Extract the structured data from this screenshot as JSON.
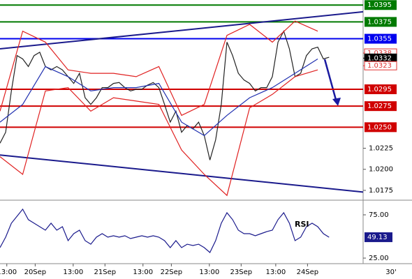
{
  "chart_data": [
    {
      "type": "line",
      "xlim": [
        0,
        64
      ],
      "ylim": [
        1.0165,
        1.0401
      ],
      "yticks": [
        1.0225,
        {
          "value": 1.02,
          "label": "1.0200"
        },
        1.0175
      ],
      "levels": [
        {
          "value": 1.0395,
          "color": "#007a00"
        },
        {
          "value": 1.0375,
          "color": "#007a00"
        },
        {
          "value": 1.0355,
          "color": "#0000ee"
        },
        {
          "value": 1.0295,
          "color": "#d00000"
        },
        {
          "value": 1.0275,
          "color": "#d00000"
        },
        {
          "value": {
            "value": 1.025,
            "label": "1.0250"
          },
          "color": "#d00000"
        }
      ],
      "markers": [
        {
          "value": 1.0338,
          "color": "#e03030"
        },
        {
          "value": 1.0332,
          "color": "#000000"
        },
        {
          "value": 1.0323,
          "color": "#e03030"
        }
      ],
      "trendlines": [
        {
          "x": [
            0,
            64
          ],
          "values": [
            1.0343,
            1.0387
          ],
          "color": "#1a1a8c"
        },
        {
          "x": [
            0,
            64
          ],
          "values": [
            1.0217,
            1.0173
          ],
          "color": "#1a1a8c"
        }
      ],
      "series": [
        {
          "color": "#222222",
          "x": [
            0,
            1,
            2,
            3,
            4,
            5,
            6,
            7,
            8,
            9,
            10,
            11,
            12,
            13,
            14,
            15,
            16,
            17,
            18,
            19,
            20,
            21,
            22,
            23,
            24,
            25,
            26,
            27,
            28,
            29,
            30,
            31,
            32,
            33,
            34,
            35,
            36,
            37,
            38,
            39,
            40,
            41,
            42,
            43,
            44,
            45,
            46,
            47,
            48,
            49,
            50,
            51,
            52,
            53,
            54,
            55,
            56,
            57,
            58
          ],
          "values": [
            1.0231,
            1.0244,
            1.0293,
            1.0335,
            1.0331,
            1.0322,
            1.0335,
            1.0339,
            1.0322,
            1.0318,
            1.0322,
            1.0318,
            1.031,
            1.0302,
            1.0314,
            1.0285,
            1.0277,
            1.0285,
            1.0297,
            1.0297,
            1.0302,
            1.0303,
            1.0297,
            1.0293,
            1.0295,
            1.0295,
            1.03,
            1.0303,
            1.0297,
            1.0277,
            1.0256,
            1.0269,
            1.0244,
            1.0252,
            1.0248,
            1.0256,
            1.024,
            1.0211,
            1.0235,
            1.0277,
            1.0351,
            1.0335,
            1.0314,
            1.0306,
            1.0302,
            1.0293,
            1.0297,
            1.0297,
            1.031,
            1.0351,
            1.0364,
            1.0343,
            1.031,
            1.0314,
            1.0335,
            1.0343,
            1.0345,
            1.0331,
            1.0333
          ]
        },
        {
          "color": "#e02020",
          "x": [
            0,
            4,
            8,
            12,
            16,
            20,
            24,
            28,
            32,
            36,
            40,
            44,
            48,
            52,
            56
          ],
          "values": [
            1.0269,
            1.0364,
            1.0351,
            1.0318,
            1.0314,
            1.0314,
            1.031,
            1.0322,
            1.0264,
            1.0277,
            1.0359,
            1.0372,
            1.0351,
            1.0376,
            1.0364
          ]
        },
        {
          "color": "#e02020",
          "x": [
            0,
            4,
            8,
            12,
            16,
            20,
            24,
            28,
            32,
            36,
            40,
            44,
            48,
            52,
            56
          ],
          "values": [
            1.0215,
            1.0194,
            1.0293,
            1.0297,
            1.0269,
            1.0285,
            1.0281,
            1.0277,
            1.0223,
            1.0194,
            1.0169,
            1.0273,
            1.0289,
            1.031,
            1.0318
          ]
        },
        {
          "color": "#2030b0",
          "x": [
            0,
            4,
            8,
            12,
            16,
            20,
            24,
            28,
            32,
            36,
            40,
            44,
            48,
            52,
            56
          ],
          "values": [
            1.0256,
            1.0277,
            1.0322,
            1.031,
            1.0293,
            1.0297,
            1.0297,
            1.0302,
            1.0256,
            1.024,
            1.0264,
            1.0285,
            1.0297,
            1.0314,
            1.0331
          ]
        }
      ]
    },
    {
      "type": "line",
      "label": "RSI",
      "xlim": [
        0,
        64
      ],
      "ylim": [
        21,
        89.5
      ],
      "yticks": [
        {
          "value": 75,
          "label": "75.00"
        },
        {
          "value": 25,
          "label": "25.00"
        }
      ],
      "xticks": [
        {
          "value": 1.2,
          "label": "13:00"
        },
        {
          "value": 6.2,
          "label": "20Sep"
        },
        {
          "value": 12.9,
          "label": "13:00"
        },
        {
          "value": 18.5,
          "label": "21Sep"
        },
        {
          "value": 25.2,
          "label": "13:00"
        },
        {
          "value": 30.2,
          "label": "22Sep"
        },
        {
          "value": 36.9,
          "label": "13:00"
        },
        {
          "value": 42.5,
          "label": "23Sep"
        },
        {
          "value": 48.6,
          "label": "13:00"
        },
        {
          "value": 54.2,
          "label": "24Sep"
        }
      ],
      "x_unit": "30'",
      "series": [
        {
          "color": "#1a1a8c",
          "x": [
            0,
            1,
            2,
            3,
            4,
            5,
            6,
            7,
            8,
            9,
            10,
            11,
            12,
            13,
            14,
            15,
            16,
            17,
            18,
            19,
            20,
            21,
            22,
            23,
            24,
            25,
            26,
            27,
            28,
            29,
            30,
            31,
            32,
            33,
            34,
            35,
            36,
            37,
            38,
            39,
            40,
            41,
            42,
            43,
            44,
            45,
            46,
            47,
            48,
            49,
            50,
            51,
            52,
            53,
            54,
            55,
            56,
            57,
            58
          ],
          "values": [
            37.1,
            49.2,
            65.3,
            73.4,
            81.5,
            69.4,
            65.3,
            61.3,
            57.3,
            65.3,
            57.3,
            61.3,
            45.2,
            53.2,
            57.3,
            45.2,
            41.1,
            49.2,
            53.2,
            49.2,
            50.8,
            49.2,
            50.8,
            47.6,
            49.2,
            50.8,
            49.2,
            50.8,
            49.2,
            45.2,
            37.1,
            45.2,
            37.1,
            41.1,
            39.5,
            41.1,
            37.1,
            31.5,
            45.2,
            65.3,
            77.4,
            69.4,
            57.3,
            53.2,
            53.2,
            50.8,
            53.2,
            55.6,
            57.3,
            69.4,
            77.4,
            65.3,
            45.2,
            49.2,
            61.3,
            65.3,
            61.3,
            53.2,
            49.13
          ]
        }
      ]
    }
  ]
}
